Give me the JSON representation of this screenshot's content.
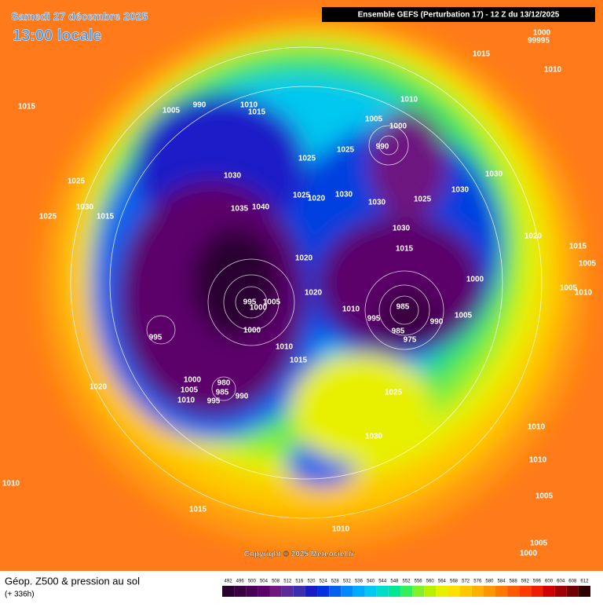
{
  "header": {
    "date": "Samedi 27 décembre 2025",
    "time": "13:00 locale",
    "run": "Ensemble GEFS  (Perturbation 17)  -  12 Z du 13/12/2025"
  },
  "copyright": "Copyright © 2025 Meteociel.fr",
  "footer": {
    "title": "Géop. Z500 & pression au sol",
    "lead": "(+ 336h)"
  },
  "isobar_labels": [
    "1000",
    "99995",
    "1015",
    "1010",
    "1015",
    "1005",
    "990",
    "1010",
    "1015",
    "1010",
    "1005",
    "1000",
    "990",
    "1025",
    "1025",
    "1030",
    "1030",
    "1030",
    "1030",
    "1025",
    "1025",
    "1030",
    "1040",
    "1035",
    "1025",
    "1020",
    "1030",
    "1025",
    "1015",
    "1030",
    "1020",
    "1015",
    "1015",
    "1020",
    "1005",
    "1000",
    "1005",
    "1010",
    "1020",
    "985",
    "995",
    "1000",
    "1005",
    "1010",
    "995",
    "990",
    "1005",
    "995",
    "1000",
    "985",
    "975",
    "1010",
    "1015",
    "1000",
    "980",
    "1025",
    "1005",
    "985",
    "990",
    "1010",
    "995",
    "1020",
    "1010",
    "1030",
    "1010",
    "1010",
    "1005",
    "1015",
    "1010",
    "1005",
    "1000"
  ],
  "legend": {
    "ticks": [
      492,
      496,
      500,
      504,
      508,
      512,
      516,
      520,
      524,
      528,
      532,
      536,
      540,
      544,
      548,
      552,
      556,
      560,
      564,
      568,
      572,
      576,
      580,
      584,
      588,
      592,
      596,
      600,
      604,
      608,
      612
    ],
    "colors": [
      "#2a0030",
      "#3a0040",
      "#4b0055",
      "#5c006b",
      "#6e1880",
      "#5a2a9a",
      "#3b2fb0",
      "#1a1ac8",
      "#0033e0",
      "#0060f0",
      "#0088ff",
      "#00aaff",
      "#00c8f0",
      "#00dcc8",
      "#00e896",
      "#30f060",
      "#80f030",
      "#b8f000",
      "#e8f000",
      "#ffe000",
      "#ffc800",
      "#ffb000",
      "#ff9600",
      "#ff7800",
      "#ff5a00",
      "#ff3c00",
      "#f01e00",
      "#d00000",
      "#a00000",
      "#700000",
      "#300000"
    ]
  }
}
